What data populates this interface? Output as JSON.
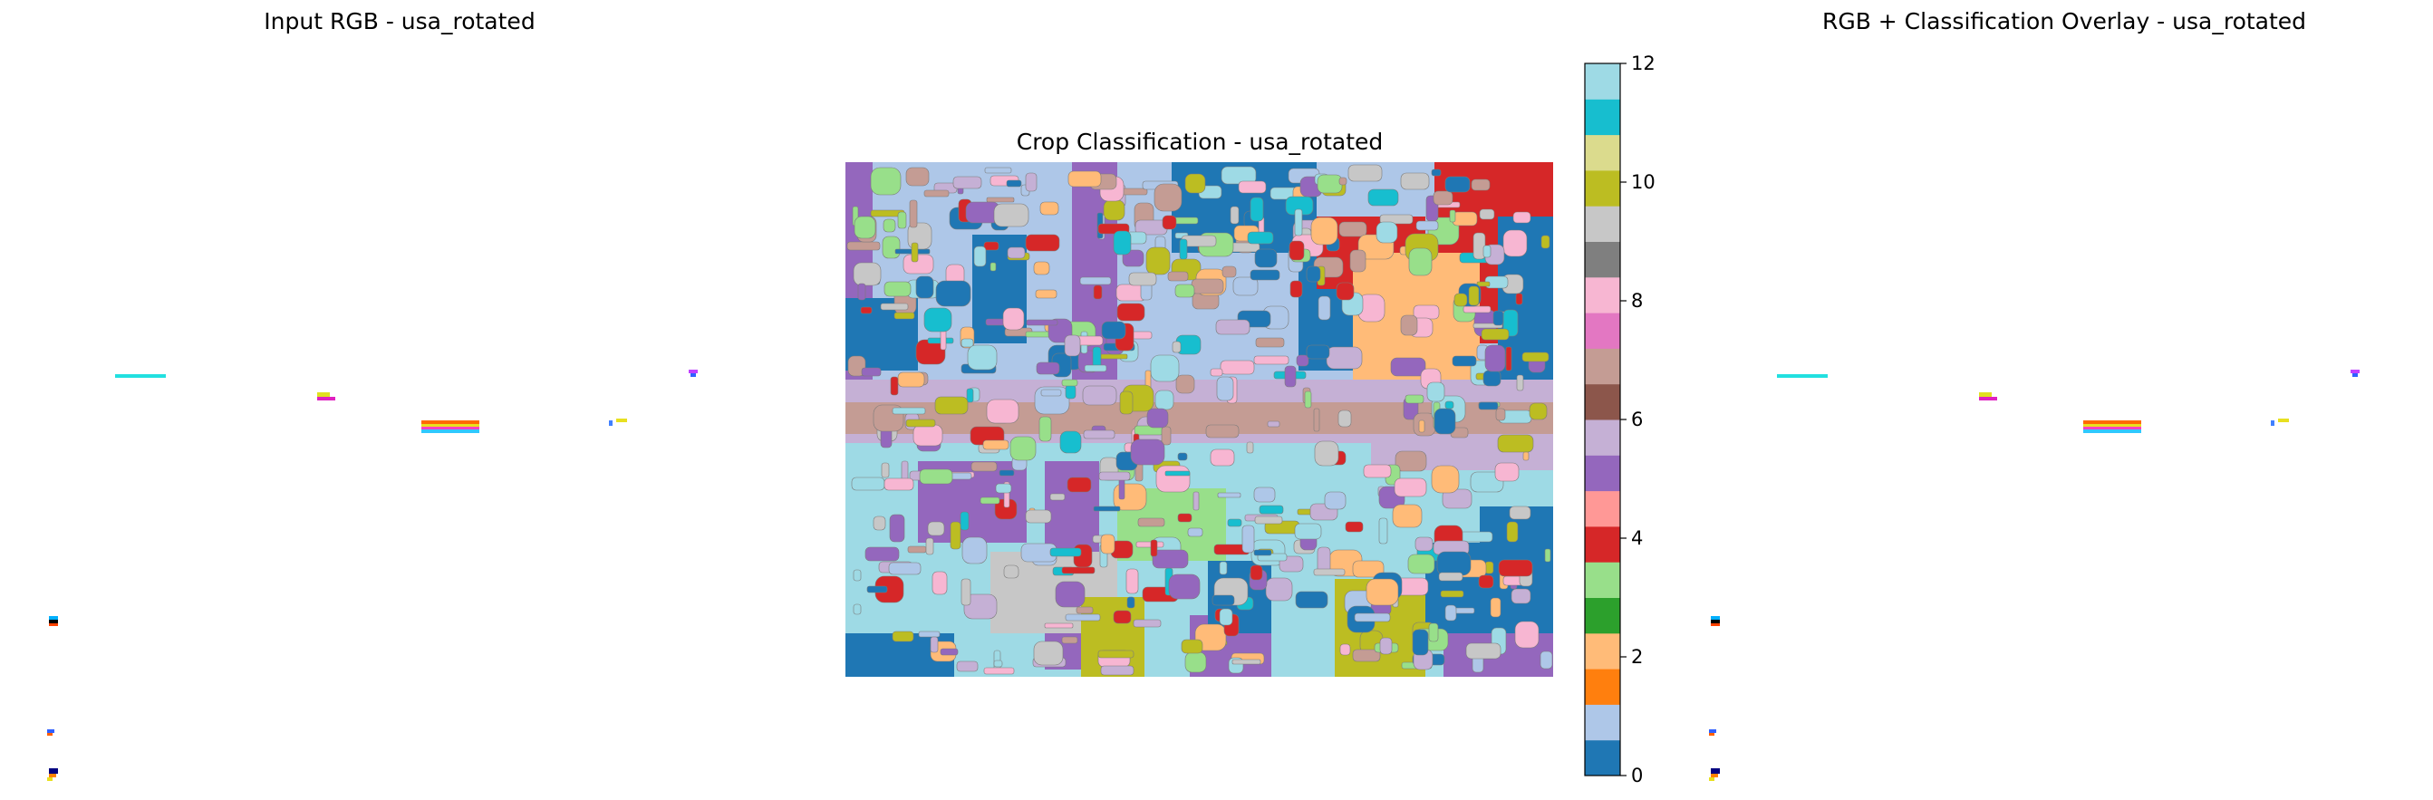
{
  "panels": {
    "left_title": "Input RGB - usa_rotated",
    "center_title": "Crop Classification - usa_rotated",
    "right_title": "RGB + Classification Overlay - usa_rotated"
  },
  "chart_data": [
    {
      "type": "image",
      "title": "Input RGB - usa_rotated",
      "description_of_content": "Mostly blank white image with a few small colored pixel clusters (cyan, magenta, yellow, blue, orange)"
    },
    {
      "type": "heatmap",
      "title": "Crop Classification - usa_rotated",
      "colormap": "tab20",
      "clim": [
        0,
        12
      ],
      "colorbar": {
        "ticks": [
          0,
          2,
          4,
          6,
          8,
          10,
          12
        ],
        "tick_labels": [
          "0",
          "2",
          "4",
          "6",
          "8",
          "10",
          "12"
        ],
        "position": "right"
      },
      "class_colors": [
        "#1f77b4",
        "#aec7e8",
        "#ff7f0e",
        "#ffbb78",
        "#2ca02c",
        "#98df8a",
        "#d62728",
        "#ff9896",
        "#9467bd",
        "#c5b0d5",
        "#8c564b",
        "#c49c94",
        "#e377c2",
        "#f7b6d2",
        "#7f7f7f",
        "#c7c7c7",
        "#bcbd22",
        "#dbdb8d",
        "#17becf",
        "#9edae5"
      ]
    },
    {
      "type": "image",
      "title": "RGB + Classification Overlay - usa_rotated",
      "description_of_content": "Same sparse pixel clusters as the input RGB over white background"
    }
  ]
}
